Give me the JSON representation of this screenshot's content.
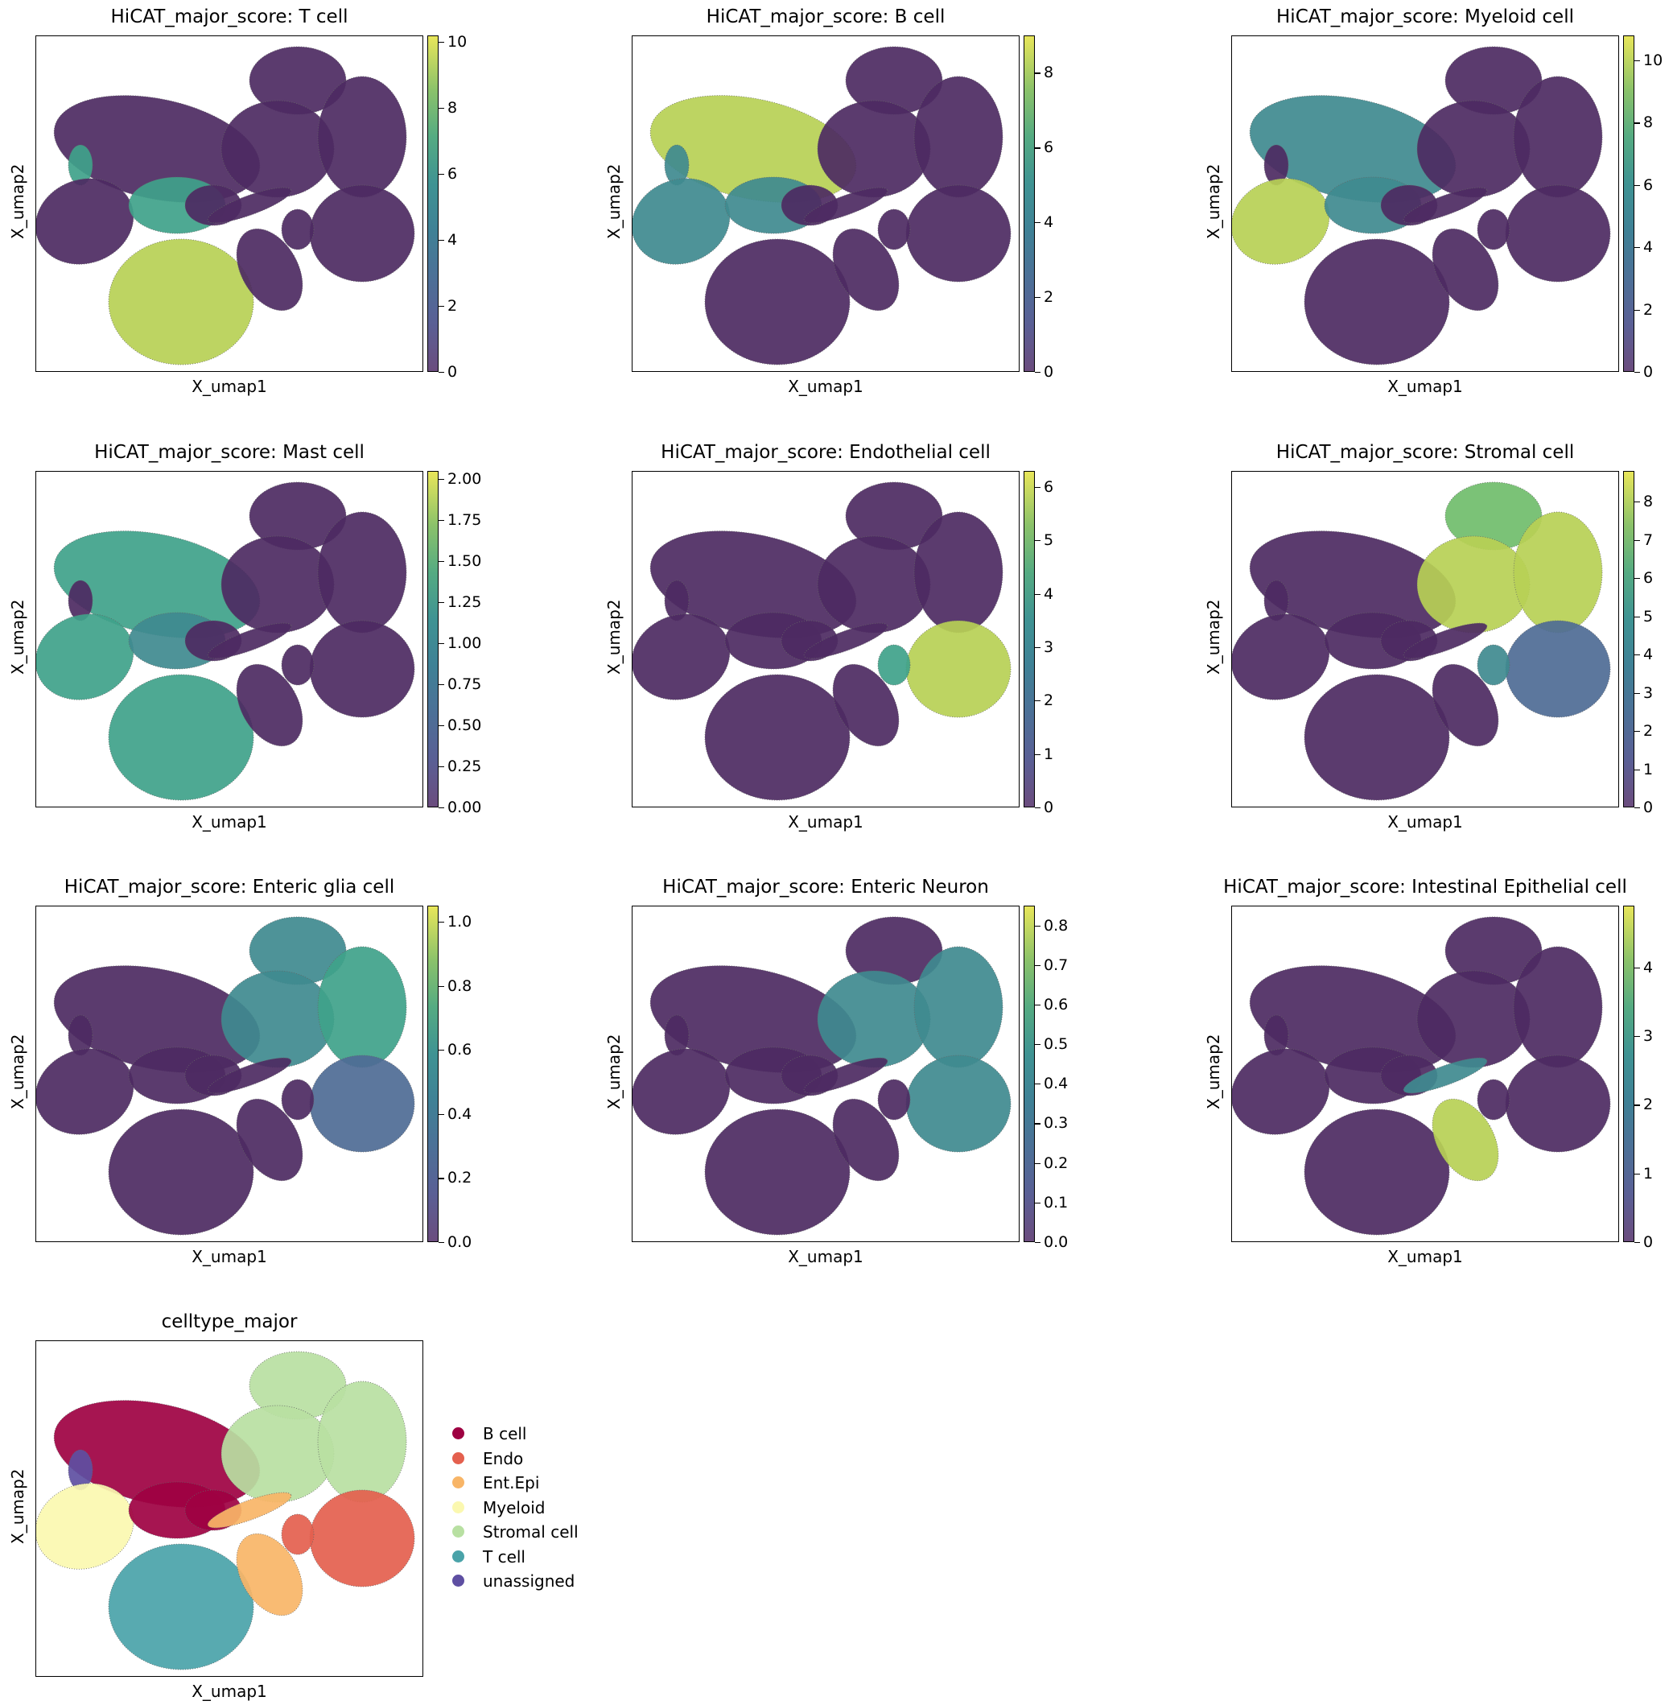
{
  "chart_data": [
    {
      "type": "scatter",
      "title": "HiCAT_major_score: T cell",
      "xlabel": "X_umap1",
      "ylabel": "X_umap2",
      "colorbar": {
        "min": 0,
        "max": 10.2,
        "ticks": [
          "0",
          "2",
          "4",
          "6",
          "8",
          "10"
        ],
        "tick_values": [
          0,
          2,
          4,
          6,
          8,
          10
        ]
      },
      "hot": "tcell"
    },
    {
      "type": "scatter",
      "title": "HiCAT_major_score: B cell",
      "xlabel": "X_umap1",
      "ylabel": "X_umap2",
      "colorbar": {
        "min": 0,
        "max": 9,
        "ticks": [
          "0",
          "2",
          "4",
          "6",
          "8"
        ],
        "tick_values": [
          0,
          2,
          4,
          6,
          8
        ]
      },
      "hot": "bcell"
    },
    {
      "type": "scatter",
      "title": "HiCAT_major_score: Myeloid cell",
      "xlabel": "X_umap1",
      "ylabel": "X_umap2",
      "colorbar": {
        "min": 0,
        "max": 10.8,
        "ticks": [
          "0",
          "2",
          "4",
          "6",
          "8",
          "10"
        ],
        "tick_values": [
          0,
          2,
          4,
          6,
          8,
          10
        ]
      },
      "hot": "myeloid"
    },
    {
      "type": "scatter",
      "title": "HiCAT_major_score: Mast cell",
      "xlabel": "X_umap1",
      "ylabel": "X_umap2",
      "colorbar": {
        "min": 0,
        "max": 2.05,
        "ticks": [
          "0.00",
          "0.25",
          "0.50",
          "0.75",
          "1.00",
          "1.25",
          "1.50",
          "1.75",
          "2.00"
        ],
        "tick_values": [
          0,
          0.25,
          0.5,
          0.75,
          1,
          1.25,
          1.5,
          1.75,
          2
        ]
      },
      "hot": "mast"
    },
    {
      "type": "scatter",
      "title": "HiCAT_major_score: Endothelial cell",
      "xlabel": "X_umap1",
      "ylabel": "X_umap2",
      "colorbar": {
        "min": 0,
        "max": 6.3,
        "ticks": [
          "0",
          "1",
          "2",
          "3",
          "4",
          "5",
          "6"
        ],
        "tick_values": [
          0,
          1,
          2,
          3,
          4,
          5,
          6
        ]
      },
      "hot": "endo"
    },
    {
      "type": "scatter",
      "title": "HiCAT_major_score: Stromal cell",
      "xlabel": "X_umap1",
      "ylabel": "X_umap2",
      "colorbar": {
        "min": 0,
        "max": 8.8,
        "ticks": [
          "0",
          "1",
          "2",
          "3",
          "4",
          "5",
          "6",
          "7",
          "8"
        ],
        "tick_values": [
          0,
          1,
          2,
          3,
          4,
          5,
          6,
          7,
          8
        ]
      },
      "hot": "stromal"
    },
    {
      "type": "scatter",
      "title": "HiCAT_major_score: Enteric glia cell",
      "xlabel": "X_umap1",
      "ylabel": "X_umap2",
      "colorbar": {
        "min": 0,
        "max": 1.05,
        "ticks": [
          "0.0",
          "0.2",
          "0.4",
          "0.6",
          "0.8",
          "1.0"
        ],
        "tick_values": [
          0,
          0.2,
          0.4,
          0.6,
          0.8,
          1.0
        ]
      },
      "hot": "glia"
    },
    {
      "type": "scatter",
      "title": "HiCAT_major_score: Enteric Neuron",
      "xlabel": "X_umap1",
      "ylabel": "X_umap2",
      "colorbar": {
        "min": 0,
        "max": 0.85,
        "ticks": [
          "0.0",
          "0.1",
          "0.2",
          "0.3",
          "0.4",
          "0.5",
          "0.6",
          "0.7",
          "0.8"
        ],
        "tick_values": [
          0,
          0.1,
          0.2,
          0.3,
          0.4,
          0.5,
          0.6,
          0.7,
          0.8
        ]
      },
      "hot": "neuron"
    },
    {
      "type": "scatter",
      "title": "HiCAT_major_score: Intestinal Epithelial cell",
      "xlabel": "X_umap1",
      "ylabel": "X_umap2",
      "colorbar": {
        "min": 0,
        "max": 4.9,
        "ticks": [
          "0",
          "1",
          "2",
          "3",
          "4"
        ],
        "tick_values": [
          0,
          1,
          2,
          3,
          4
        ]
      },
      "hot": "epi"
    },
    {
      "type": "scatter",
      "title": "celltype_major",
      "xlabel": "X_umap1",
      "ylabel": "X_umap2",
      "categorical": true,
      "legend": [
        {
          "label": "B cell",
          "color": "#9e0142"
        },
        {
          "label": "Endo",
          "color": "#e4604e"
        },
        {
          "label": "Ent.Epi",
          "color": "#f8b567"
        },
        {
          "label": "Myeloid",
          "color": "#fbf8b0"
        },
        {
          "label": "Stromal cell",
          "color": "#b8e0a2"
        },
        {
          "label": "T cell",
          "color": "#4aa3a9"
        },
        {
          "label": "unassigned",
          "color": "#5e4fa2"
        }
      ]
    }
  ]
}
